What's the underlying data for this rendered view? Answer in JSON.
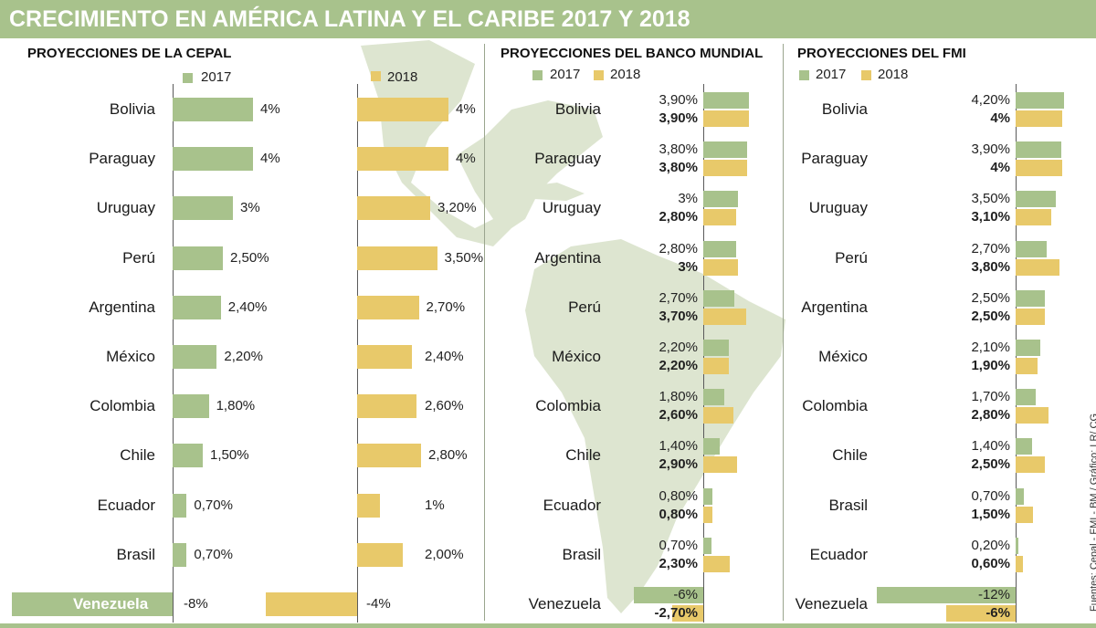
{
  "title": "CRECIMIENTO EN AMÉRICA LATINA Y EL CARIBE 2017 Y 2018",
  "source": "Fuentes: Cepal - FMI - BM / Gráfico: LR/ CG",
  "colors": {
    "y2017": "#a8c28c",
    "y2018": "#e8c96a",
    "banner": "#a8c28c",
    "map": "#dde5d0"
  },
  "chart_data": [
    {
      "type": "bar",
      "title": "PROYECCIONES DE LA CEPAL",
      "legend": {
        "s2017": "2017",
        "s2018": "2018"
      },
      "categories": [
        "Bolivia",
        "Paraguay",
        "Uruguay",
        "Perú",
        "Argentina",
        "México",
        "Colombia",
        "Chile",
        "Ecuador",
        "Brasil",
        "Venezuela"
      ],
      "series": [
        {
          "name": "2017",
          "values": [
            4,
            4,
            3,
            2.5,
            2.4,
            2.2,
            1.8,
            1.5,
            0.7,
            0.7,
            -8
          ],
          "labels": [
            "4%",
            "4%",
            "3%",
            "2,50%",
            "2,40%",
            "2,20%",
            "1,80%",
            "1,50%",
            "0,70%",
            "0,70%",
            "-8%"
          ]
        },
        {
          "name": "2018",
          "values": [
            4,
            4,
            3.2,
            3.5,
            2.7,
            2.4,
            2.6,
            2.8,
            1,
            2,
            -4
          ],
          "labels": [
            "4%",
            "4%",
            "3,20%",
            "3,50%",
            "2,70%",
            "2,40%",
            "2,60%",
            "2,80%",
            "1%",
            "2,00%",
            "-4%"
          ]
        }
      ]
    },
    {
      "type": "bar",
      "title": "PROYECCIONES DEL BANCO MUNDIAL",
      "legend": {
        "s2017": "2017",
        "s2018": "2018"
      },
      "categories": [
        "Bolivia",
        "Paraguay",
        "Uruguay",
        "Argentina",
        "Perú",
        "México",
        "Colombia",
        "Chile",
        "Ecuador",
        "Brasil",
        "Venezuela"
      ],
      "series": [
        {
          "name": "2017",
          "values": [
            3.9,
            3.8,
            3,
            2.8,
            2.7,
            2.2,
            1.8,
            1.4,
            0.8,
            0.7,
            -6
          ],
          "labels": [
            "3,90%",
            "3,80%",
            "3%",
            "2,80%",
            "2,70%",
            "2,20%",
            "1,80%",
            "1,40%",
            "0,80%",
            "0,70%",
            "-6%"
          ]
        },
        {
          "name": "2018",
          "values": [
            3.9,
            3.8,
            2.8,
            3,
            3.7,
            2.2,
            2.6,
            2.9,
            0.8,
            2.3,
            -2.7
          ],
          "labels": [
            "3,90%",
            "3,80%",
            "2,80%",
            "3%",
            "3,70%",
            "2,20%",
            "2,60%",
            "2,90%",
            "0,80%",
            "2,30%",
            "-2,70%"
          ]
        }
      ]
    },
    {
      "type": "bar",
      "title": "PROYECCIONES DEL FMI",
      "legend": {
        "s2017": "2017",
        "s2018": "2018"
      },
      "categories": [
        "Bolivia",
        "Paraguay",
        "Uruguay",
        "Perú",
        "Argentina",
        "México",
        "Colombia",
        "Chile",
        "Brasil",
        "Ecuador",
        "Venezuela"
      ],
      "series": [
        {
          "name": "2017",
          "values": [
            4.2,
            3.9,
            3.5,
            2.7,
            2.5,
            2.1,
            1.7,
            1.4,
            0.7,
            0.2,
            -12
          ],
          "labels": [
            "4,20%",
            "3,90%",
            "3,50%",
            "2,70%",
            "2,50%",
            "2,10%",
            "1,70%",
            "1,40%",
            "0,70%",
            "0,20%",
            "-12%"
          ]
        },
        {
          "name": "2018",
          "values": [
            4,
            4,
            3.1,
            3.8,
            2.5,
            1.9,
            2.8,
            2.5,
            1.5,
            0.6,
            -6
          ],
          "labels": [
            "4%",
            "4%",
            "3,10%",
            "3,80%",
            "2,50%",
            "1,90%",
            "2,80%",
            "2,50%",
            "1,50%",
            "0,60%",
            "-6%"
          ]
        }
      ]
    }
  ]
}
